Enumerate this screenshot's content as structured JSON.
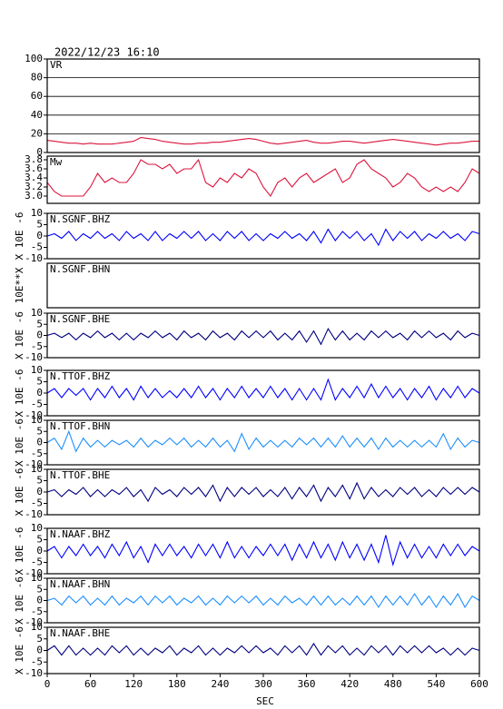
{
  "chart_data": [
    {
      "type": "line",
      "title": "2022/12/23  16:10",
      "label": "VR",
      "color": "#dc143c",
      "grid": true,
      "xlim": [
        0,
        600
      ],
      "ylim": [
        0,
        100
      ],
      "yticks": [
        0,
        20,
        40,
        60,
        80,
        100
      ],
      "x": [
        0,
        10,
        20,
        30,
        40,
        50,
        60,
        70,
        80,
        90,
        100,
        110,
        120,
        130,
        140,
        150,
        160,
        170,
        180,
        190,
        200,
        210,
        220,
        230,
        240,
        250,
        260,
        270,
        280,
        290,
        300,
        310,
        320,
        330,
        340,
        350,
        360,
        370,
        380,
        390,
        400,
        410,
        420,
        430,
        440,
        450,
        460,
        470,
        480,
        490,
        500,
        510,
        520,
        530,
        540,
        550,
        560,
        570,
        580,
        590,
        600
      ],
      "values": [
        13,
        12,
        11,
        10,
        10,
        9,
        10,
        9,
        9,
        9,
        10,
        11,
        12,
        16,
        15,
        14,
        12,
        11,
        10,
        9,
        9,
        10,
        10,
        11,
        11,
        12,
        13,
        14,
        15,
        14,
        12,
        10,
        9,
        10,
        11,
        12,
        13,
        11,
        10,
        10,
        11,
        12,
        12,
        11,
        10,
        11,
        12,
        13,
        14,
        13,
        12,
        11,
        10,
        9,
        8,
        9,
        10,
        10,
        11,
        12,
        12
      ]
    },
    {
      "type": "line",
      "label": "Mw",
      "color": "#dc143c",
      "xlim": [
        0,
        600
      ],
      "ylim": [
        2.84,
        3.88
      ],
      "yticks": [
        {
          "value": 3,
          "label": "3.0"
        },
        3.2,
        3.4,
        3.6,
        3.8
      ],
      "x": [
        0,
        10,
        20,
        30,
        40,
        50,
        60,
        70,
        80,
        90,
        100,
        110,
        120,
        130,
        140,
        150,
        160,
        170,
        180,
        190,
        200,
        210,
        220,
        230,
        240,
        250,
        260,
        270,
        280,
        290,
        300,
        310,
        320,
        330,
        340,
        350,
        360,
        370,
        380,
        390,
        400,
        410,
        420,
        430,
        440,
        450,
        460,
        470,
        480,
        490,
        500,
        510,
        520,
        530,
        540,
        550,
        560,
        570,
        580,
        590,
        600
      ],
      "values": [
        3.3,
        3.1,
        3.0,
        3.0,
        3.0,
        3.0,
        3.2,
        3.5,
        3.3,
        3.4,
        3.3,
        3.3,
        3.5,
        3.8,
        3.7,
        3.7,
        3.6,
        3.7,
        3.5,
        3.6,
        3.6,
        3.8,
        3.3,
        3.2,
        3.4,
        3.3,
        3.5,
        3.4,
        3.6,
        3.5,
        3.2,
        3.0,
        3.3,
        3.4,
        3.2,
        3.4,
        3.5,
        3.3,
        3.4,
        3.5,
        3.6,
        3.3,
        3.4,
        3.7,
        3.8,
        3.6,
        3.5,
        3.4,
        3.2,
        3.3,
        3.5,
        3.4,
        3.2,
        3.1,
        3.2,
        3.1,
        3.2,
        3.1,
        3.3,
        3.6,
        3.5
      ]
    },
    {
      "type": "line",
      "label": "N.SGNF.BHZ",
      "ylabel": "X 10E -6",
      "color": "#0000ff",
      "xlim": [
        0,
        600
      ],
      "ylim": [
        -10,
        10
      ],
      "yticks": [
        10,
        5,
        0,
        -5,
        -10
      ],
      "x": [
        0,
        10,
        20,
        30,
        40,
        50,
        60,
        70,
        80,
        90,
        100,
        110,
        120,
        130,
        140,
        150,
        160,
        170,
        180,
        190,
        200,
        210,
        220,
        230,
        240,
        250,
        260,
        270,
        280,
        290,
        300,
        310,
        320,
        330,
        340,
        350,
        360,
        370,
        380,
        390,
        400,
        410,
        420,
        430,
        440,
        450,
        460,
        470,
        480,
        490,
        500,
        510,
        520,
        530,
        540,
        550,
        560,
        570,
        580,
        590,
        600
      ],
      "values": [
        0,
        1,
        -1,
        2,
        -2,
        1,
        -1,
        2,
        -1,
        1,
        -2,
        2,
        -1,
        1,
        -2,
        2,
        -2,
        1,
        -1,
        2,
        -1,
        2,
        -2,
        1,
        -2,
        2,
        -1,
        2,
        -2,
        1,
        -2,
        1,
        -1,
        2,
        -1,
        1,
        -2,
        2,
        -3,
        3,
        -2,
        2,
        -1,
        2,
        -2,
        1,
        -4,
        3,
        -2,
        2,
        -1,
        2,
        -2,
        1,
        -1,
        2,
        -1,
        1,
        -2,
        2,
        1
      ]
    },
    {
      "type": "line",
      "label": "N.SGNF.BHN",
      "ylabel": "10E**X"
    },
    {
      "type": "line",
      "label": "N.SGNF.BHE",
      "ylabel": "X 10E -6",
      "color": "#000080",
      "xlim": [
        0,
        600
      ],
      "ylim": [
        -10,
        10
      ],
      "yticks": [
        10,
        5,
        0,
        -5,
        -10
      ],
      "x": [
        0,
        10,
        20,
        30,
        40,
        50,
        60,
        70,
        80,
        90,
        100,
        110,
        120,
        130,
        140,
        150,
        160,
        170,
        180,
        190,
        200,
        210,
        220,
        230,
        240,
        250,
        260,
        270,
        280,
        290,
        300,
        310,
        320,
        330,
        340,
        350,
        360,
        370,
        380,
        390,
        400,
        410,
        420,
        430,
        440,
        450,
        460,
        470,
        480,
        490,
        500,
        510,
        520,
        530,
        540,
        550,
        560,
        570,
        580,
        590,
        600
      ],
      "values": [
        0,
        1,
        -1,
        1,
        -2,
        1,
        -1,
        2,
        -1,
        1,
        -2,
        1,
        -2,
        1,
        -1,
        2,
        -1,
        1,
        -2,
        2,
        -1,
        1,
        -2,
        2,
        -1,
        1,
        -2,
        2,
        -1,
        2,
        -1,
        2,
        -2,
        1,
        -2,
        2,
        -3,
        2,
        -4,
        3,
        -2,
        2,
        -2,
        1,
        -2,
        2,
        -1,
        2,
        -1,
        1,
        -2,
        2,
        -1,
        2,
        -1,
        1,
        -2,
        2,
        -1,
        1,
        0
      ]
    },
    {
      "type": "line",
      "label": "N.TTOF.BHZ",
      "ylabel": "X 10E -6",
      "color": "#0000ff",
      "xlim": [
        0,
        600
      ],
      "ylim": [
        -10,
        10
      ],
      "yticks": [
        10,
        5,
        0,
        -5,
        -10
      ],
      "x": [
        0,
        10,
        20,
        30,
        40,
        50,
        60,
        70,
        80,
        90,
        100,
        110,
        120,
        130,
        140,
        150,
        160,
        170,
        180,
        190,
        200,
        210,
        220,
        230,
        240,
        250,
        260,
        270,
        280,
        290,
        300,
        310,
        320,
        330,
        340,
        350,
        360,
        370,
        380,
        390,
        400,
        410,
        420,
        430,
        440,
        450,
        460,
        470,
        480,
        490,
        500,
        510,
        520,
        530,
        540,
        550,
        560,
        570,
        580,
        590,
        600
      ],
      "values": [
        0,
        2,
        -2,
        2,
        -1,
        2,
        -3,
        2,
        -2,
        3,
        -2,
        2,
        -3,
        3,
        -2,
        2,
        -2,
        1,
        -2,
        2,
        -2,
        3,
        -2,
        2,
        -3,
        2,
        -2,
        3,
        -2,
        2,
        -2,
        3,
        -2,
        2,
        -3,
        2,
        -3,
        2,
        -3,
        6,
        -3,
        2,
        -2,
        3,
        -2,
        4,
        -2,
        3,
        -2,
        2,
        -3,
        2,
        -2,
        3,
        -3,
        2,
        -2,
        3,
        -2,
        2,
        0
      ]
    },
    {
      "type": "line",
      "label": "N.TTOF.BHN",
      "ylabel": "X 10E -6",
      "color": "#1e90ff",
      "xlim": [
        0,
        600
      ],
      "ylim": [
        -10,
        10
      ],
      "yticks": [
        10,
        5,
        0,
        -5,
        -10
      ],
      "x": [
        0,
        10,
        20,
        30,
        40,
        50,
        60,
        70,
        80,
        90,
        100,
        110,
        120,
        130,
        140,
        150,
        160,
        170,
        180,
        190,
        200,
        210,
        220,
        230,
        240,
        250,
        260,
        270,
        280,
        290,
        300,
        310,
        320,
        330,
        340,
        350,
        360,
        370,
        380,
        390,
        400,
        410,
        420,
        430,
        440,
        450,
        460,
        470,
        480,
        490,
        500,
        510,
        520,
        530,
        540,
        550,
        560,
        570,
        580,
        590,
        600
      ],
      "values": [
        0,
        2,
        -3,
        5,
        -4,
        2,
        -2,
        1,
        -2,
        1,
        -1,
        1,
        -2,
        2,
        -2,
        1,
        -1,
        2,
        -1,
        2,
        -2,
        1,
        -2,
        2,
        -2,
        1,
        -4,
        4,
        -3,
        2,
        -2,
        1,
        -2,
        1,
        -2,
        2,
        -1,
        2,
        -2,
        2,
        -2,
        3,
        -2,
        2,
        -2,
        2,
        -3,
        2,
        -2,
        1,
        -2,
        1,
        -2,
        1,
        -2,
        4,
        -3,
        2,
        -2,
        1,
        0
      ]
    },
    {
      "type": "line",
      "label": "N.TTOF.BHE",
      "ylabel": "X 10E -6",
      "color": "#000080",
      "xlim": [
        0,
        600
      ],
      "ylim": [
        -10,
        10
      ],
      "yticks": [
        10,
        5,
        0,
        -5,
        -10
      ],
      "x": [
        0,
        10,
        20,
        30,
        40,
        50,
        60,
        70,
        80,
        90,
        100,
        110,
        120,
        130,
        140,
        150,
        160,
        170,
        180,
        190,
        200,
        210,
        220,
        230,
        240,
        250,
        260,
        270,
        280,
        290,
        300,
        310,
        320,
        330,
        340,
        350,
        360,
        370,
        380,
        390,
        400,
        410,
        420,
        430,
        440,
        450,
        460,
        470,
        480,
        490,
        500,
        510,
        520,
        530,
        540,
        550,
        560,
        570,
        580,
        590,
        600
      ],
      "values": [
        0,
        1,
        -2,
        1,
        -1,
        2,
        -2,
        1,
        -2,
        1,
        -1,
        2,
        -2,
        1,
        -4,
        2,
        -1,
        1,
        -2,
        2,
        -1,
        2,
        -2,
        3,
        -4,
        2,
        -2,
        2,
        -1,
        2,
        -2,
        1,
        -2,
        2,
        -3,
        2,
        -2,
        3,
        -4,
        2,
        -2,
        3,
        -3,
        4,
        -3,
        2,
        -2,
        1,
        -2,
        2,
        -1,
        2,
        -2,
        1,
        -2,
        2,
        -1,
        2,
        -1,
        2,
        0
      ]
    },
    {
      "type": "line",
      "label": "N.NAAF.BHZ",
      "ylabel": "X 10E -6",
      "color": "#0000ff",
      "xlim": [
        0,
        600
      ],
      "ylim": [
        -10,
        10
      ],
      "yticks": [
        10,
        5,
        0,
        -5,
        -10
      ],
      "x": [
        0,
        10,
        20,
        30,
        40,
        50,
        60,
        70,
        80,
        90,
        100,
        110,
        120,
        130,
        140,
        150,
        160,
        170,
        180,
        190,
        200,
        210,
        220,
        230,
        240,
        250,
        260,
        270,
        280,
        290,
        300,
        310,
        320,
        330,
        340,
        350,
        360,
        370,
        380,
        390,
        400,
        410,
        420,
        430,
        440,
        450,
        460,
        470,
        480,
        490,
        500,
        510,
        520,
        530,
        540,
        550,
        560,
        570,
        580,
        590,
        600
      ],
      "values": [
        0,
        2,
        -3,
        2,
        -2,
        3,
        -2,
        2,
        -3,
        3,
        -2,
        4,
        -3,
        2,
        -5,
        3,
        -2,
        3,
        -2,
        2,
        -3,
        3,
        -2,
        3,
        -3,
        4,
        -3,
        2,
        -3,
        2,
        -2,
        3,
        -2,
        3,
        -4,
        3,
        -3,
        4,
        -3,
        3,
        -4,
        4,
        -3,
        3,
        -4,
        3,
        -5,
        7,
        -6,
        4,
        -3,
        3,
        -3,
        2,
        -3,
        3,
        -2,
        3,
        -2,
        2,
        0
      ]
    },
    {
      "type": "line",
      "label": "N.NAAF.BHN",
      "ylabel": "X 10E -6",
      "color": "#1e90ff",
      "xlim": [
        0,
        600
      ],
      "ylim": [
        -10,
        10
      ],
      "yticks": [
        10,
        5,
        0,
        -5,
        -10
      ],
      "x": [
        0,
        10,
        20,
        30,
        40,
        50,
        60,
        70,
        80,
        90,
        100,
        110,
        120,
        130,
        140,
        150,
        160,
        170,
        180,
        190,
        200,
        210,
        220,
        230,
        240,
        250,
        260,
        270,
        280,
        290,
        300,
        310,
        320,
        330,
        340,
        350,
        360,
        370,
        380,
        390,
        400,
        410,
        420,
        430,
        440,
        450,
        460,
        470,
        480,
        490,
        500,
        510,
        520,
        530,
        540,
        550,
        560,
        570,
        580,
        590,
        600
      ],
      "values": [
        0,
        1,
        -2,
        2,
        -1,
        2,
        -2,
        1,
        -2,
        2,
        -2,
        1,
        -1,
        2,
        -2,
        2,
        -1,
        2,
        -2,
        1,
        -1,
        2,
        -2,
        1,
        -2,
        2,
        -1,
        2,
        -1,
        2,
        -2,
        1,
        -2,
        2,
        -1,
        1,
        -2,
        2,
        -2,
        2,
        -2,
        1,
        -2,
        2,
        -2,
        2,
        -3,
        2,
        -2,
        2,
        -2,
        3,
        -2,
        2,
        -3,
        2,
        -2,
        3,
        -3,
        2,
        0
      ]
    },
    {
      "type": "line",
      "label": "N.NAAF.BHE",
      "ylabel": "X 10E -6",
      "color": "#000080",
      "xlim": [
        0,
        600
      ],
      "ylim": [
        -10,
        10
      ],
      "yticks": [
        10,
        5,
        0,
        -5,
        -10
      ],
      "xticks": [
        0,
        60,
        120,
        180,
        240,
        300,
        360,
        420,
        480,
        540,
        600
      ],
      "xlabel": "SEC",
      "x": [
        0,
        10,
        20,
        30,
        40,
        50,
        60,
        70,
        80,
        90,
        100,
        110,
        120,
        130,
        140,
        150,
        160,
        170,
        180,
        190,
        200,
        210,
        220,
        230,
        240,
        250,
        260,
        270,
        280,
        290,
        300,
        310,
        320,
        330,
        340,
        350,
        360,
        370,
        380,
        390,
        400,
        410,
        420,
        430,
        440,
        450,
        460,
        470,
        480,
        490,
        500,
        510,
        520,
        530,
        540,
        550,
        560,
        570,
        580,
        590,
        600
      ],
      "values": [
        0,
        2,
        -2,
        2,
        -2,
        1,
        -2,
        1,
        -2,
        2,
        -1,
        2,
        -2,
        1,
        -2,
        1,
        -1,
        2,
        -2,
        1,
        -1,
        2,
        -2,
        1,
        -2,
        1,
        -1,
        2,
        -1,
        2,
        -1,
        1,
        -2,
        2,
        -1,
        2,
        -2,
        3,
        -2,
        2,
        -1,
        2,
        -2,
        1,
        -2,
        2,
        -1,
        2,
        -2,
        2,
        -1,
        2,
        -1,
        2,
        -1,
        1,
        -2,
        1,
        -2,
        1,
        0
      ]
    }
  ]
}
